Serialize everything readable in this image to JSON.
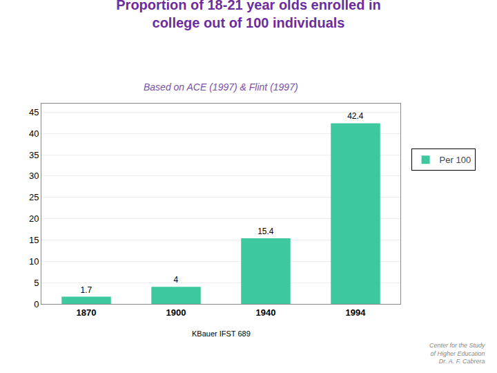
{
  "chart_data": {
    "type": "bar",
    "title": "Proportion of 18-21 year olds enrolled in\ncollege out of 100 individuals",
    "subtitle": "Based on ACE (1997) & Flint (1997)",
    "categories": [
      "1870",
      "1900",
      "1940",
      "1994"
    ],
    "series": [
      {
        "name": "Per 100",
        "color": "#3DC8A0",
        "values": [
          1.7,
          4.0,
          15.4,
          42.4
        ]
      }
    ],
    "ylim": [
      0,
      47
    ],
    "yticks": [
      0,
      5,
      10,
      15,
      20,
      25,
      30,
      35,
      40,
      45
    ],
    "grid": true,
    "legend": "right",
    "data_labels": true,
    "annotations": [
      "KBauer IFST 689",
      "Center for the Study\nof Higher Education\nDr. A. F. Cabrera"
    ]
  }
}
